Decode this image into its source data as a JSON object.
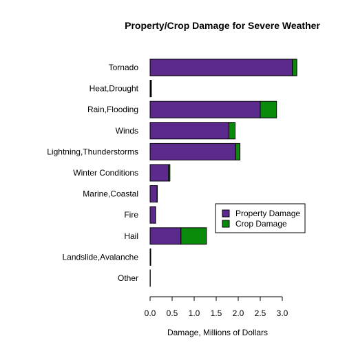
{
  "chart_data": {
    "type": "bar",
    "orientation": "horizontal",
    "stacked": true,
    "title": "Property/Crop Damage for Severe Weather",
    "xlabel": "Damage, Millions of Dollars",
    "ylabel": "",
    "xlim": [
      0,
      3.25
    ],
    "xticks": [
      "0.0",
      "0.5",
      "1.0",
      "1.5",
      "2.0",
      "2.5",
      "3.0"
    ],
    "grid": false,
    "legend_position": "right",
    "categories": [
      "Tornado",
      "Heat,Drought",
      "Rain,Flooding",
      "Winds",
      "Lightning,Thunderstorms",
      "Winter Conditions",
      "Marine,Coastal",
      "Fire",
      "Hail",
      "Landslide,Avalanche",
      "Other"
    ],
    "series": [
      {
        "name": "Property Damage",
        "color": "#5b2a8c",
        "values": [
          3.23,
          0.01,
          2.5,
          1.79,
          1.94,
          0.42,
          0.16,
          0.12,
          0.7,
          0.01,
          0.005
        ]
      },
      {
        "name": "Crop Damage",
        "color": "#0a8a0a",
        "values": [
          0.1,
          0.02,
          0.37,
          0.14,
          0.1,
          0.03,
          0.005,
          0.005,
          0.58,
          0.005,
          0.0
        ]
      }
    ]
  }
}
